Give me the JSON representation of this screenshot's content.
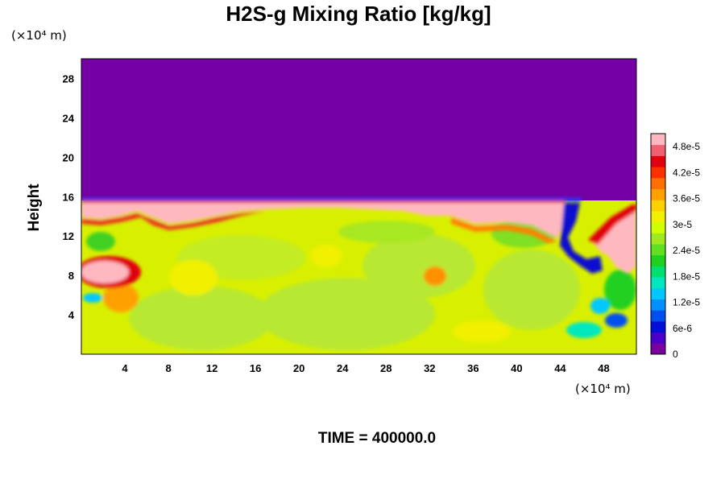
{
  "chart_data": {
    "type": "heatmap",
    "title": "H2S-g Mixing Ratio [kg/kg]",
    "ylabel": "Height",
    "xlabel": "",
    "x_unit_label": "(×10⁴ m)",
    "y_unit_label": "(×10⁴ m)",
    "x_range": [
      0,
      51
    ],
    "y_range": [
      0,
      30
    ],
    "x_ticks": [
      4,
      8,
      12,
      16,
      20,
      24,
      28,
      32,
      36,
      40,
      44,
      48
    ],
    "y_ticks": [
      4,
      8,
      12,
      16,
      20,
      24,
      28
    ],
    "time_label": "TIME = 400000.0",
    "colorbar": {
      "range": [
        0,
        5.1e-05
      ],
      "tick_values": [
        0,
        6e-06,
        1.2e-05,
        1.8e-05,
        2.4e-05,
        3e-05,
        3.6e-05,
        4.2e-05,
        4.8e-05
      ],
      "tick_labels": [
        "0",
        "6e-6",
        "1.2e-5",
        "1.8e-5",
        "2.4e-5",
        "3e-5",
        "3.6e-5",
        "4.2e-5",
        "4.8e-5"
      ],
      "colors": [
        "#7a00a0",
        "#4a00c8",
        "#0010d8",
        "#0050f0",
        "#0090ff",
        "#00c8ff",
        "#00e8c0",
        "#00e070",
        "#20d020",
        "#60e020",
        "#a0e820",
        "#d0ff00",
        "#f0f000",
        "#ffd000",
        "#ffa000",
        "#ff7000",
        "#ff3000",
        "#e00010",
        "#f06070",
        "#ffb8c0"
      ]
    },
    "field_regions": {
      "upper_layer_value": 0,
      "boundary_height": 15.5,
      "boundary_value": 5e-05,
      "background_value": 3.3e-05
    },
    "grid": false,
    "legend": "right colorbar"
  }
}
